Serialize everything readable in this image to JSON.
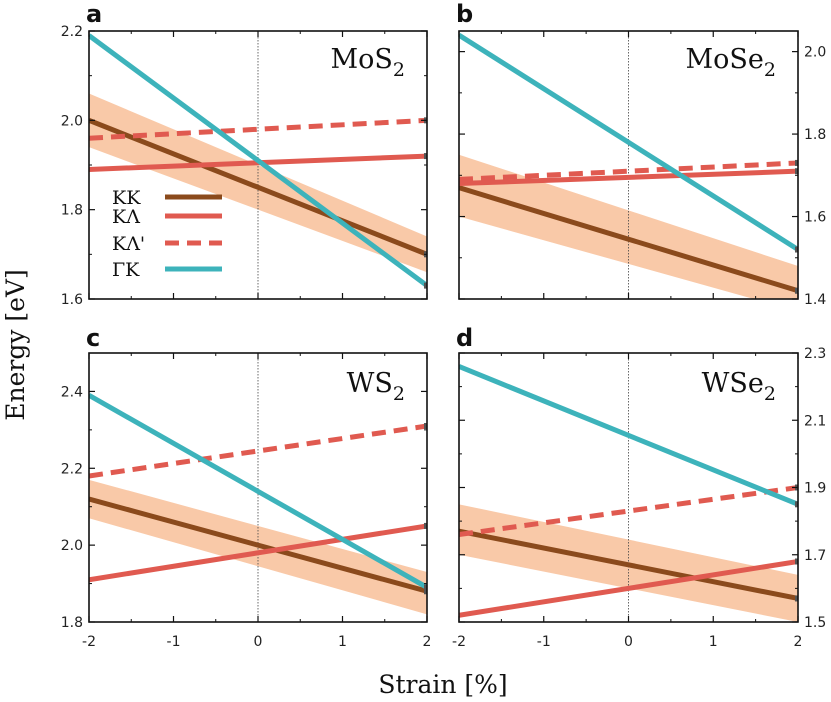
{
  "figure": {
    "ylabel": "Energy [eV]",
    "xlabel": "Strain [%]"
  },
  "colors": {
    "KK": "#8B4A1C",
    "KLambda": "#E05A50",
    "KLambdaPrime": "#E05A50",
    "GammaK": "#3DB3BB",
    "band": "#F9C9A8",
    "axis": "#111111"
  },
  "legend": {
    "entries": [
      {
        "label": "KK",
        "series": "KK",
        "style": "solid"
      },
      {
        "label": "KΛ",
        "series": "KLambda",
        "style": "solid"
      },
      {
        "label": "KΛ'",
        "series": "KLambdaPrime",
        "style": "dashed"
      },
      {
        "label": "ΓK",
        "series": "GammaK",
        "style": "solid"
      }
    ]
  },
  "chart_data": [
    {
      "panel": "a",
      "type": "line",
      "title": "MoS",
      "title_sub": "2",
      "x": [
        -2,
        2
      ],
      "xticks": [
        "-2",
        "-1",
        "0",
        "1",
        "2"
      ],
      "xlim": [
        -2,
        2
      ],
      "ylim": [
        1.6,
        2.2
      ],
      "yticks": [
        "1.6",
        "1.8",
        "2.0",
        "2.2"
      ],
      "y_axis_side": "left",
      "xlabels_shown": false,
      "vline_x": 0,
      "band": {
        "lower": [
          1.94,
          1.66
        ],
        "upper": [
          2.06,
          1.74
        ]
      },
      "series": [
        {
          "key": "KK",
          "name": "KK",
          "values": [
            2.0,
            1.7
          ],
          "style": "solid"
        },
        {
          "key": "KLambda",
          "name": "KΛ",
          "values": [
            1.89,
            1.92
          ],
          "style": "solid"
        },
        {
          "key": "KLambdaPrime",
          "name": "KΛ'",
          "values": [
            1.96,
            2.0
          ],
          "style": "dashed"
        },
        {
          "key": "GammaK",
          "name": "ΓK",
          "values": [
            2.19,
            1.63
          ],
          "style": "solid"
        }
      ]
    },
    {
      "panel": "b",
      "type": "line",
      "title": "MoSe",
      "title_sub": "2",
      "x": [
        -2,
        2
      ],
      "xticks": [
        "-2",
        "-1",
        "0",
        "1",
        "2"
      ],
      "xlim": [
        -2,
        2
      ],
      "ylim": [
        1.4,
        2.05
      ],
      "yticks": [
        "1.4",
        "1.6",
        "1.8",
        "2.0"
      ],
      "y_axis_side": "right",
      "xlabels_shown": false,
      "vline_x": 0,
      "band": {
        "lower": [
          1.6,
          1.37
        ],
        "upper": [
          1.75,
          1.48
        ]
      },
      "series": [
        {
          "key": "KK",
          "name": "KK",
          "values": [
            1.67,
            1.42
          ],
          "style": "solid"
        },
        {
          "key": "KLambda",
          "name": "KΛ",
          "values": [
            1.68,
            1.71
          ],
          "style": "solid"
        },
        {
          "key": "KLambdaPrime",
          "name": "KΛ'",
          "values": [
            1.69,
            1.73
          ],
          "style": "dashed"
        },
        {
          "key": "GammaK",
          "name": "ΓK",
          "values": [
            2.04,
            1.52
          ],
          "style": "solid"
        }
      ]
    },
    {
      "panel": "c",
      "type": "line",
      "title": "WS",
      "title_sub": "2",
      "x": [
        -2,
        2
      ],
      "xticks": [
        "-2",
        "-1",
        "0",
        "1",
        "2"
      ],
      "xlim": [
        -2,
        2
      ],
      "ylim": [
        1.8,
        2.5
      ],
      "yticks": [
        "1.8",
        "2.0",
        "2.2",
        "2.4"
      ],
      "y_axis_side": "left",
      "xlabels_shown": true,
      "vline_x": 0,
      "band": {
        "lower": [
          2.07,
          1.82
        ],
        "upper": [
          2.17,
          1.93
        ]
      },
      "series": [
        {
          "key": "KK",
          "name": "KK",
          "values": [
            2.12,
            1.88
          ],
          "style": "solid"
        },
        {
          "key": "KLambda",
          "name": "KΛ",
          "values": [
            1.91,
            2.05
          ],
          "style": "solid"
        },
        {
          "key": "KLambdaPrime",
          "name": "KΛ'",
          "values": [
            2.18,
            2.31
          ],
          "style": "dashed"
        },
        {
          "key": "GammaK",
          "name": "ΓK",
          "values": [
            2.39,
            1.89
          ],
          "style": "solid"
        }
      ]
    },
    {
      "panel": "d",
      "type": "line",
      "title": "WSe",
      "title_sub": "2",
      "x": [
        -2,
        2
      ],
      "xticks": [
        "-2",
        "-1",
        "0",
        "1",
        "2"
      ],
      "xlim": [
        -2,
        2
      ],
      "ylim": [
        1.5,
        2.3
      ],
      "yticks": [
        "1.5",
        "1.7",
        "1.9",
        "2.1",
        "2.3"
      ],
      "y_axis_side": "right",
      "xlabels_shown": true,
      "vline_x": 0,
      "band": {
        "lower": [
          1.7,
          1.5
        ],
        "upper": [
          1.85,
          1.64
        ]
      },
      "series": [
        {
          "key": "KK",
          "name": "KK",
          "values": [
            1.77,
            1.57
          ],
          "style": "solid"
        },
        {
          "key": "KLambda",
          "name": "KΛ",
          "values": [
            1.52,
            1.68
          ],
          "style": "solid"
        },
        {
          "key": "KLambdaPrime",
          "name": "KΛ'",
          "values": [
            1.76,
            1.9
          ],
          "style": "dashed"
        },
        {
          "key": "GammaK",
          "name": "ΓK",
          "values": [
            2.26,
            1.85
          ],
          "style": "solid"
        }
      ]
    }
  ]
}
